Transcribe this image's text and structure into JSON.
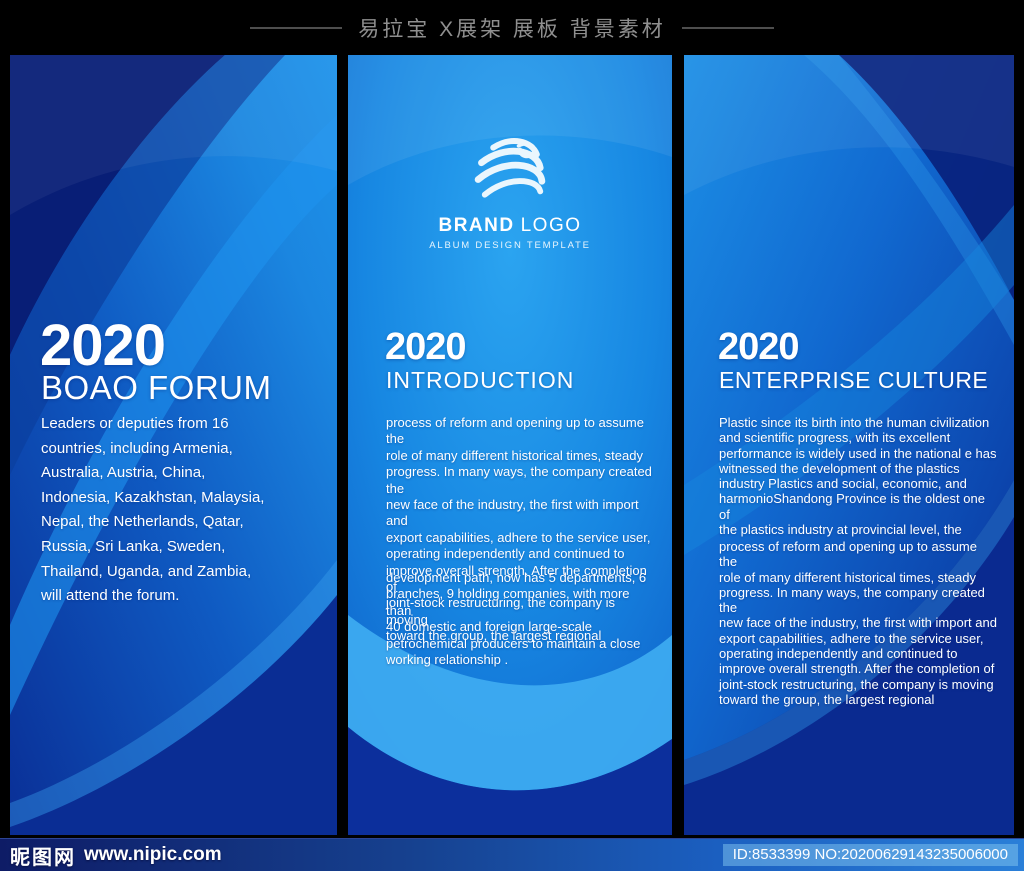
{
  "header": {
    "title": "易拉宝 X展架 展板 背景素材"
  },
  "logo": {
    "brand": "BRAND",
    "logo": "LOGO",
    "tagline": "ALBUM DESIGN TEMPLATE"
  },
  "panels": [
    {
      "year": "2020",
      "title": "BOAO FORUM",
      "paragraphs": [
        [
          "Leaders or deputies from 16",
          "countries, including Armenia,",
          "Australia, Austria, China,",
          "Indonesia, Kazakhstan, Malaysia,",
          "Nepal, the Netherlands, Qatar,",
          "Russia, Sri Lanka, Sweden,",
          "Thailand, Uganda, and Zambia,",
          "will attend the forum."
        ]
      ]
    },
    {
      "year": "2020",
      "title": "INTRODUCTION",
      "paragraphs": [
        [
          "process of reform and opening up to assume the",
          "role of many different historical times, steady",
          "progress. In many ways, the company created the",
          "new face of the industry, the first with import and",
          "export capabilities, adhere to the service user,",
          "operating independently and continued to",
          "improve overall strength. After the completion of",
          "joint-stock restructuring, the company is moving",
          "toward the group, the largest regional"
        ],
        [
          "development path, now has 5 departments, 6",
          "branches, 9 holding companies, with more than",
          "40 domestic and foreign large-scale",
          " petrochemical producers to maintain a close",
          "working relationship ."
        ]
      ]
    },
    {
      "year": "2020",
      "title": "ENTERPRISE CULTURE",
      "paragraphs": [
        [
          "Plastic since its birth into the human civilization",
          "and scientific progress, with its excellent",
          "performance is widely used in the national e has",
          "witnessed the development of the plastics",
          "industry Plastics and social, economic, and",
          "harmonioShandong Province is the oldest one of",
          "the plastics industry at provincial level, the"
        ],
        [
          "process of reform and opening up to assume the",
          "role of many different historical times, steady",
          "progress. In many ways, the company created the",
          "new face of the industry, the first with import and",
          "export capabilities, adhere to the service user,",
          "operating independently and continued to",
          "improve overall strength. After the completion of",
          "joint-stock restructuring, the company is moving",
          "toward the group, the largest regional"
        ]
      ]
    }
  ],
  "footer": {
    "site_name": "昵图网",
    "site_url": "www.nipic.com",
    "image_id": "ID:8533399 NO:20200629143235006000"
  },
  "colors": {
    "bright_blue": "#1b8ee6",
    "mid_blue": "#1063c8",
    "navy": "#081e76",
    "deep_navy": "#0a2d94",
    "light_cyan": "#3fadf2",
    "footer_left": "#0e1c66",
    "footer_right": "#2a7fd8",
    "badge_bg": "#82c6f0",
    "header_text": "#8f8f8f"
  }
}
